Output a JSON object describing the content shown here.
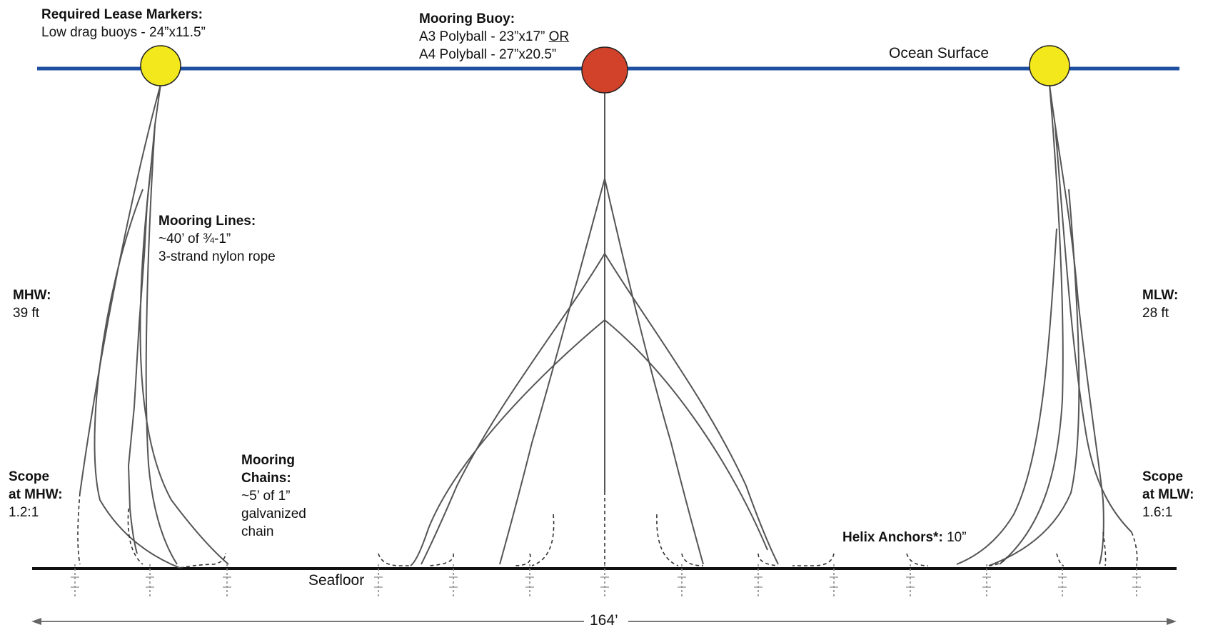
{
  "lease_markers": {
    "title": "Required Lease Markers:",
    "desc": "Low drag buoys - 24”x11.5”",
    "color": "#f2e81c"
  },
  "mooring_buoy": {
    "title": "Mooring Buoy:",
    "line1": "A3 Polyball - 23”x17”",
    "line1_or": "OR",
    "line2": "A4 Polyball - 27”x20.5”",
    "color": "#d2412a"
  },
  "ocean_surface": {
    "label": "Ocean Surface",
    "color": "#1f4fa0"
  },
  "mooring_lines": {
    "title": "Mooring Lines:",
    "line1": "~40’ of ¾-1”",
    "line2": "3-strand nylon rope"
  },
  "mhw": {
    "title": "MHW:",
    "value": "39 ft"
  },
  "mlw": {
    "title": "MLW:",
    "value": "28 ft"
  },
  "scope_mhw": {
    "line1": "Scope",
    "line2": "at MHW:",
    "value": "1.2:1"
  },
  "scope_mlw": {
    "line1": "Scope",
    "line2": "at MLW:",
    "value": "1.6:1"
  },
  "mooring_chains": {
    "line1": "Mooring",
    "line2": "Chains:",
    "line3": "~5’ of 1”",
    "line4": "galvanized",
    "line5": "chain"
  },
  "helix_anchors": {
    "title": "Helix Anchors*:",
    "value": "10”"
  },
  "seafloor": {
    "label": "Seafloor"
  },
  "span": {
    "label": "164’"
  }
}
